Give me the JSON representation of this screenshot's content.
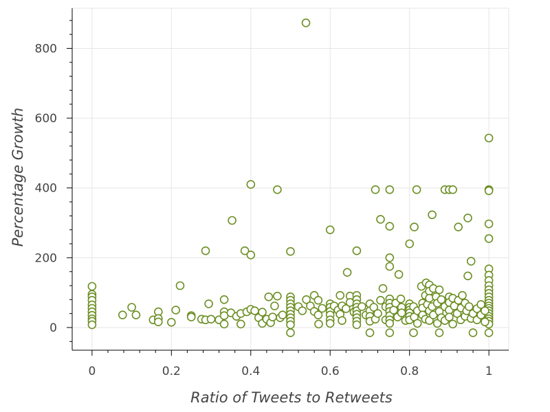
{
  "chart_data": {
    "type": "scatter",
    "title": "",
    "xlabel": "Ratio of Tweets to Retweets",
    "ylabel": "Percentage Growth",
    "xlim": [
      -0.05,
      1.05
    ],
    "ylim": [
      -65,
      915
    ],
    "xticks": [
      0,
      0.2,
      0.4,
      0.6,
      0.8,
      1
    ],
    "xtick_labels": [
      "0",
      "0.2",
      "0.4",
      "0.6",
      "0.8",
      "1"
    ],
    "yticks": [
      0,
      200,
      400,
      600,
      800
    ],
    "ytick_labels": [
      "0",
      "200",
      "400",
      "600",
      "800"
    ],
    "grid": true,
    "legend": "none",
    "marker_color": "#6b8e23",
    "points": [
      [
        0.539,
        873
      ],
      [
        1.0,
        543
      ],
      [
        1.0,
        395
      ],
      [
        1.0,
        392
      ],
      [
        1.0,
        297
      ],
      [
        1.0,
        255
      ],
      [
        1.0,
        168
      ],
      [
        1.0,
        150
      ],
      [
        1.0,
        135
      ],
      [
        1.0,
        120
      ],
      [
        1.0,
        108
      ],
      [
        1.0,
        98
      ],
      [
        1.0,
        88
      ],
      [
        1.0,
        78
      ],
      [
        1.0,
        70
      ],
      [
        1.0,
        62
      ],
      [
        1.0,
        55
      ],
      [
        1.0,
        48
      ],
      [
        1.0,
        40
      ],
      [
        1.0,
        32
      ],
      [
        1.0,
        25
      ],
      [
        1.0,
        18
      ],
      [
        1.0,
        10
      ],
      [
        1.0,
        -15
      ],
      [
        0.4,
        410
      ],
      [
        0.467,
        395
      ],
      [
        0.714,
        395
      ],
      [
        0.75,
        395
      ],
      [
        0.818,
        395
      ],
      [
        0.889,
        395
      ],
      [
        0.9,
        395
      ],
      [
        0.909,
        395
      ],
      [
        0.353,
        307
      ],
      [
        0.727,
        310
      ],
      [
        0.75,
        290
      ],
      [
        0.812,
        288
      ],
      [
        0.857,
        323
      ],
      [
        0.923,
        288
      ],
      [
        0.947,
        314
      ],
      [
        0.6,
        280
      ],
      [
        0.8,
        240
      ],
      [
        0.286,
        220
      ],
      [
        0.385,
        220
      ],
      [
        0.4,
        208
      ],
      [
        0.5,
        218
      ],
      [
        0.667,
        220
      ],
      [
        0.75,
        200
      ],
      [
        0.75,
        175
      ],
      [
        0.955,
        190
      ],
      [
        0.773,
        152
      ],
      [
        0.947,
        148
      ],
      [
        0.643,
        158
      ],
      [
        0.0,
        118
      ],
      [
        0.0,
        95
      ],
      [
        0.0,
        88
      ],
      [
        0.0,
        78
      ],
      [
        0.0,
        65
      ],
      [
        0.0,
        55
      ],
      [
        0.0,
        45
      ],
      [
        0.0,
        35
      ],
      [
        0.0,
        25
      ],
      [
        0.0,
        18
      ],
      [
        0.0,
        8
      ],
      [
        0.077,
        36
      ],
      [
        0.1,
        58
      ],
      [
        0.111,
        36
      ],
      [
        0.154,
        22
      ],
      [
        0.167,
        45
      ],
      [
        0.167,
        26
      ],
      [
        0.167,
        16
      ],
      [
        0.2,
        15
      ],
      [
        0.211,
        50
      ],
      [
        0.222,
        120
      ],
      [
        0.25,
        34
      ],
      [
        0.25,
        30
      ],
      [
        0.276,
        24
      ],
      [
        0.286,
        22
      ],
      [
        0.294,
        68
      ],
      [
        0.3,
        24
      ],
      [
        0.32,
        22
      ],
      [
        0.333,
        80
      ],
      [
        0.333,
        45
      ],
      [
        0.333,
        34
      ],
      [
        0.333,
        10
      ],
      [
        0.35,
        42
      ],
      [
        0.364,
        32
      ],
      [
        0.375,
        40
      ],
      [
        0.375,
        10
      ],
      [
        0.39,
        45
      ],
      [
        0.4,
        52
      ],
      [
        0.41,
        48
      ],
      [
        0.42,
        28
      ],
      [
        0.429,
        44
      ],
      [
        0.429,
        12
      ],
      [
        0.44,
        24
      ],
      [
        0.445,
        88
      ],
      [
        0.45,
        14
      ],
      [
        0.455,
        30
      ],
      [
        0.46,
        62
      ],
      [
        0.467,
        90
      ],
      [
        0.474,
        28
      ],
      [
        0.48,
        36
      ],
      [
        0.5,
        88
      ],
      [
        0.5,
        78
      ],
      [
        0.5,
        68
      ],
      [
        0.5,
        58
      ],
      [
        0.5,
        48
      ],
      [
        0.5,
        38
      ],
      [
        0.5,
        28
      ],
      [
        0.5,
        18
      ],
      [
        0.5,
        8
      ],
      [
        0.5,
        -15
      ],
      [
        0.52,
        60
      ],
      [
        0.53,
        48
      ],
      [
        0.54,
        80
      ],
      [
        0.55,
        62
      ],
      [
        0.56,
        92
      ],
      [
        0.56,
        46
      ],
      [
        0.57,
        78
      ],
      [
        0.57,
        36
      ],
      [
        0.571,
        10
      ],
      [
        0.58,
        55
      ],
      [
        0.6,
        68
      ],
      [
        0.6,
        58
      ],
      [
        0.6,
        46
      ],
      [
        0.6,
        36
      ],
      [
        0.6,
        22
      ],
      [
        0.6,
        12
      ],
      [
        0.61,
        62
      ],
      [
        0.62,
        50
      ],
      [
        0.625,
        92
      ],
      [
        0.625,
        38
      ],
      [
        0.63,
        62
      ],
      [
        0.63,
        20
      ],
      [
        0.64,
        54
      ],
      [
        0.65,
        90
      ],
      [
        0.65,
        72
      ],
      [
        0.66,
        44
      ],
      [
        0.667,
        92
      ],
      [
        0.667,
        80
      ],
      [
        0.667,
        68
      ],
      [
        0.667,
        58
      ],
      [
        0.667,
        48
      ],
      [
        0.667,
        38
      ],
      [
        0.667,
        28
      ],
      [
        0.667,
        18
      ],
      [
        0.667,
        8
      ],
      [
        0.68,
        60
      ],
      [
        0.69,
        36
      ],
      [
        0.7,
        68
      ],
      [
        0.7,
        48
      ],
      [
        0.7,
        32
      ],
      [
        0.7,
        18
      ],
      [
        0.7,
        -15
      ],
      [
        0.71,
        58
      ],
      [
        0.714,
        24
      ],
      [
        0.72,
        40
      ],
      [
        0.727,
        78
      ],
      [
        0.733,
        112
      ],
      [
        0.74,
        60
      ],
      [
        0.74,
        22
      ],
      [
        0.75,
        82
      ],
      [
        0.75,
        70
      ],
      [
        0.75,
        58
      ],
      [
        0.75,
        46
      ],
      [
        0.75,
        34
      ],
      [
        0.75,
        22
      ],
      [
        0.75,
        12
      ],
      [
        0.75,
        -15
      ],
      [
        0.76,
        50
      ],
      [
        0.765,
        70
      ],
      [
        0.77,
        30
      ],
      [
        0.778,
        82
      ],
      [
        0.78,
        58
      ],
      [
        0.78,
        42
      ],
      [
        0.79,
        20
      ],
      [
        0.8,
        68
      ],
      [
        0.8,
        58
      ],
      [
        0.8,
        50
      ],
      [
        0.8,
        42
      ],
      [
        0.8,
        32
      ],
      [
        0.8,
        22
      ],
      [
        0.81,
        60
      ],
      [
        0.81,
        -15
      ],
      [
        0.812,
        30
      ],
      [
        0.82,
        48
      ],
      [
        0.82,
        12
      ],
      [
        0.83,
        118
      ],
      [
        0.833,
        70
      ],
      [
        0.833,
        56
      ],
      [
        0.833,
        36
      ],
      [
        0.84,
        92
      ],
      [
        0.84,
        24
      ],
      [
        0.842,
        128
      ],
      [
        0.845,
        66
      ],
      [
        0.85,
        122
      ],
      [
        0.85,
        104
      ],
      [
        0.85,
        84
      ],
      [
        0.85,
        48
      ],
      [
        0.85,
        20
      ],
      [
        0.857,
        60
      ],
      [
        0.86,
        112
      ],
      [
        0.86,
        36
      ],
      [
        0.867,
        88
      ],
      [
        0.87,
        70
      ],
      [
        0.87,
        12
      ],
      [
        0.875,
        108
      ],
      [
        0.875,
        46
      ],
      [
        0.875,
        -15
      ],
      [
        0.88,
        80
      ],
      [
        0.88,
        28
      ],
      [
        0.889,
        60
      ],
      [
        0.889,
        20
      ],
      [
        0.9,
        88
      ],
      [
        0.9,
        72
      ],
      [
        0.9,
        50
      ],
      [
        0.9,
        30
      ],
      [
        0.909,
        84
      ],
      [
        0.909,
        10
      ],
      [
        0.913,
        62
      ],
      [
        0.92,
        40
      ],
      [
        0.923,
        78
      ],
      [
        0.929,
        22
      ],
      [
        0.93,
        56
      ],
      [
        0.933,
        92
      ],
      [
        0.94,
        70
      ],
      [
        0.94,
        32
      ],
      [
        0.944,
        48
      ],
      [
        0.95,
        60
      ],
      [
        0.955,
        26
      ],
      [
        0.96,
        -15
      ],
      [
        0.96,
        40
      ],
      [
        0.97,
        54
      ],
      [
        0.97,
        22
      ],
      [
        0.98,
        66
      ],
      [
        0.98,
        36
      ],
      [
        0.99,
        48
      ],
      [
        0.99,
        16
      ]
    ]
  }
}
